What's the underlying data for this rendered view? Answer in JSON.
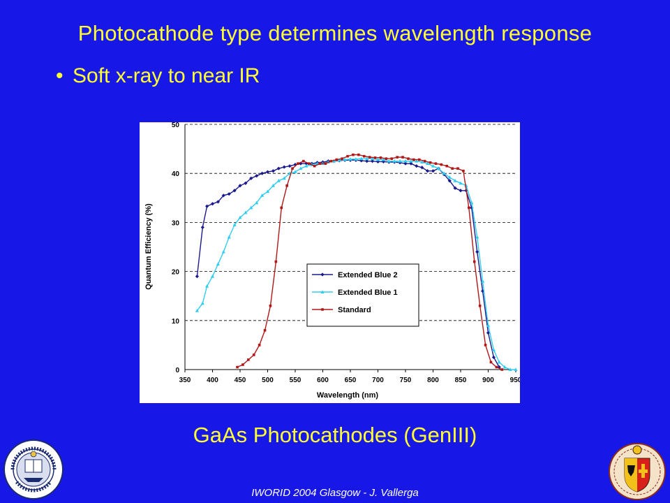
{
  "slide": {
    "title": "Photocathode type determines wavelength response",
    "bullet": "Soft x-ray to near IR",
    "caption": "GaAs Photocathodes (GenIII)",
    "footer": "IWORID 2004 Glasgow - J. Vallerga"
  },
  "logos": {
    "left": {
      "name": "uc-berkeley-seal",
      "text": "THE UNIVERSITY OF CALIFORNIA BERKELEY 1868"
    },
    "right": {
      "name": "university-of-geneva-crest"
    }
  },
  "colors": {
    "background": "#1818e6",
    "heading": "#ffff33",
    "footer": "#ffffff",
    "series_blue2": "#1a1a8c",
    "series_blue1": "#33ccee",
    "series_standard": "#b01818"
  },
  "chart_data": {
    "type": "line",
    "xlabel": "Wavelength (nm)",
    "ylabel": "Quantum Efficiency (%)",
    "xlim": [
      350,
      950
    ],
    "ylim": [
      0,
      50
    ],
    "xticks": [
      "350",
      "400",
      "450",
      "500",
      "550",
      "600",
      "650",
      "700",
      "750",
      "800",
      "850",
      "900",
      "950"
    ],
    "yticks": [
      "0",
      "10",
      "20",
      "30",
      "40",
      "50"
    ],
    "grid": "horizontal dashed",
    "legend": "center-right",
    "series": [
      {
        "name": "Extended Blue 2",
        "color": "#1a1a8c",
        "x": [
          372,
          382,
          390,
          400,
          410,
          420,
          430,
          440,
          450,
          460,
          470,
          480,
          490,
          500,
          510,
          520,
          530,
          540,
          550,
          560,
          570,
          580,
          590,
          600,
          610,
          620,
          630,
          640,
          650,
          660,
          670,
          680,
          690,
          700,
          710,
          720,
          730,
          740,
          750,
          760,
          770,
          780,
          790,
          800,
          810,
          820,
          830,
          840,
          850,
          860,
          870,
          880,
          890,
          900,
          910,
          920
        ],
        "values": [
          19,
          29,
          33.3,
          33.8,
          34.2,
          35.5,
          35.8,
          36.5,
          37.5,
          38,
          39,
          39.5,
          40,
          40.3,
          40.5,
          41,
          41.3,
          41.5,
          41.8,
          42,
          42,
          42,
          42.2,
          42.3,
          42.5,
          42.5,
          42.6,
          42.7,
          42.7,
          42.7,
          42.6,
          42.5,
          42.5,
          42.4,
          42.4,
          42.3,
          42.3,
          42.2,
          42,
          42,
          41.5,
          41.2,
          40.5,
          40.5,
          41,
          39.8,
          38.5,
          37,
          36.5,
          36.5,
          33,
          24,
          16,
          7.5,
          2.5,
          0.5
        ]
      },
      {
        "name": "Extended Blue 1",
        "color": "#33ccee",
        "x": [
          372,
          382,
          390,
          400,
          410,
          420,
          430,
          440,
          450,
          460,
          470,
          480,
          490,
          500,
          510,
          520,
          530,
          540,
          550,
          560,
          570,
          580,
          590,
          600,
          610,
          620,
          630,
          640,
          650,
          660,
          670,
          680,
          690,
          700,
          710,
          720,
          730,
          740,
          750,
          760,
          770,
          780,
          790,
          800,
          810,
          820,
          830,
          840,
          850,
          860,
          870,
          880,
          890,
          900,
          910,
          920,
          930,
          940,
          950
        ],
        "values": [
          12,
          13.5,
          17,
          19,
          21.5,
          24,
          27,
          29.5,
          31,
          32,
          33,
          34,
          35.5,
          36.3,
          37.5,
          38.5,
          39,
          40,
          40.3,
          41,
          41.5,
          41.8,
          42,
          42,
          42.3,
          42.5,
          42.7,
          42.8,
          42.9,
          42.9,
          43,
          43,
          43,
          42.8,
          42.8,
          42.5,
          42.5,
          42.5,
          42.5,
          42.5,
          42.5,
          42.3,
          42,
          41.5,
          41,
          40,
          39.2,
          38.5,
          38,
          37.5,
          34,
          27,
          18,
          9,
          4,
          1.5,
          0.5,
          0,
          0
        ]
      },
      {
        "name": "Standard",
        "color": "#b01818",
        "x": [
          445,
          455,
          465,
          475,
          485,
          495,
          505,
          515,
          525,
          535,
          545,
          555,
          565,
          575,
          585,
          595,
          605,
          615,
          625,
          635,
          645,
          655,
          665,
          675,
          685,
          695,
          705,
          715,
          725,
          735,
          745,
          755,
          765,
          775,
          785,
          795,
          805,
          815,
          825,
          835,
          845,
          855,
          865,
          875,
          885,
          895,
          905,
          915,
          925
        ],
        "values": [
          0.5,
          1,
          2,
          3,
          5,
          8,
          13,
          22,
          33,
          37.5,
          41,
          42,
          42.5,
          42,
          41.5,
          42,
          42,
          42.5,
          42.8,
          43,
          43.5,
          43.8,
          43.8,
          43.5,
          43.3,
          43.2,
          43.2,
          43,
          43,
          43.3,
          43.3,
          43,
          42.8,
          42.8,
          42.5,
          42.2,
          42,
          41.8,
          41.5,
          41,
          41,
          40.5,
          33,
          22,
          13,
          5,
          1.5,
          0.5,
          0
        ]
      }
    ]
  }
}
